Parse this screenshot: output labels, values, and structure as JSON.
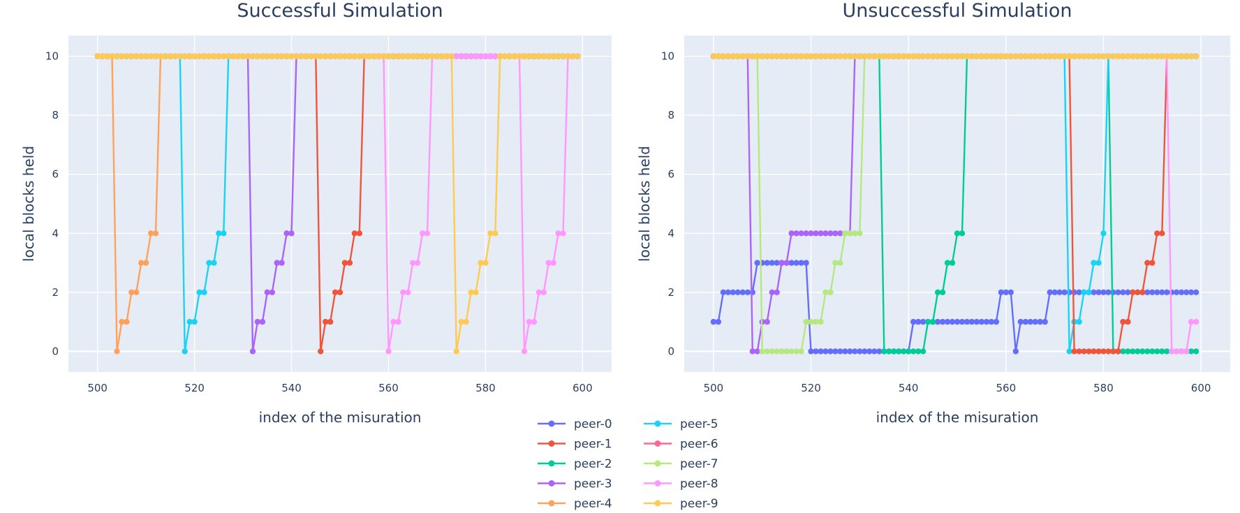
{
  "legend": {
    "placement": "bottom-center",
    "items": [
      {
        "name": "peer-0",
        "color": "#636efa"
      },
      {
        "name": "peer-1",
        "color": "#ef553b"
      },
      {
        "name": "peer-2",
        "color": "#00cc96"
      },
      {
        "name": "peer-3",
        "color": "#ab63fa"
      },
      {
        "name": "peer-4",
        "color": "#ffa15a"
      },
      {
        "name": "peer-5",
        "color": "#19d3f3"
      },
      {
        "name": "peer-6",
        "color": "#ff6692"
      },
      {
        "name": "peer-7",
        "color": "#b6e880"
      },
      {
        "name": "peer-8",
        "color": "#ff97ff"
      },
      {
        "name": "peer-9",
        "color": "#fecb52"
      }
    ]
  },
  "chart_data": [
    {
      "type": "line",
      "title": "Successful Simulation",
      "xlabel": "index of the misuration",
      "ylabel": "local blocks held",
      "xlim": [
        494,
        606
      ],
      "ylim": [
        -0.7,
        10.7
      ],
      "xticks": [
        500,
        520,
        540,
        560,
        580,
        600
      ],
      "yticks": [
        0,
        2,
        4,
        6,
        8,
        10
      ],
      "grid": true,
      "series": [
        {
          "name": "peer-4",
          "segments": [
            {
              "x0": 500,
              "x1": 503,
              "value": 10
            },
            {
              "x": [
                504,
                505,
                506,
                507,
                508,
                509,
                510,
                511,
                512,
                513
              ],
              "y": [
                0,
                1,
                1,
                2,
                2,
                3,
                3,
                4,
                4,
                10
              ]
            },
            {
              "x0": 513,
              "x1": 599,
              "value": 10
            }
          ]
        },
        {
          "name": "peer-5",
          "segments": [
            {
              "x0": 500,
              "x1": 517,
              "value": 10
            },
            {
              "x": [
                518,
                519,
                520,
                521,
                522,
                523,
                524,
                525,
                526,
                527
              ],
              "y": [
                0,
                1,
                1,
                2,
                2,
                3,
                3,
                4,
                4,
                10
              ]
            },
            {
              "x0": 527,
              "x1": 599,
              "value": 10
            }
          ]
        },
        {
          "name": "peer-3",
          "segments": [
            {
              "x0": 500,
              "x1": 531,
              "value": 10
            },
            {
              "x": [
                532,
                533,
                534,
                535,
                536,
                537,
                538,
                539,
                540,
                541
              ],
              "y": [
                0,
                1,
                1,
                2,
                2,
                3,
                3,
                4,
                4,
                10
              ]
            },
            {
              "x0": 541,
              "x1": 599,
              "value": 10
            }
          ]
        },
        {
          "name": "peer-1",
          "segments": [
            {
              "x0": 500,
              "x1": 545,
              "value": 10
            },
            {
              "x": [
                546,
                547,
                548,
                549,
                550,
                551,
                552,
                553,
                554,
                555
              ],
              "y": [
                0,
                1,
                1,
                2,
                2,
                3,
                3,
                4,
                4,
                10
              ]
            },
            {
              "x0": 555,
              "x1": 599,
              "value": 10
            }
          ]
        },
        {
          "name": "peer-8",
          "segments": [
            {
              "x0": 500,
              "x1": 559,
              "value": 10
            },
            {
              "x": [
                560,
                561,
                562,
                563,
                564,
                565,
                566,
                567,
                568,
                569
              ],
              "y": [
                0,
                1,
                1,
                2,
                2,
                3,
                3,
                4,
                4,
                10
              ]
            },
            {
              "x0": 569,
              "x1": 587,
              "value": 10
            },
            {
              "x": [
                588,
                589,
                590,
                591,
                592,
                593,
                594,
                595,
                596,
                597
              ],
              "y": [
                0,
                1,
                1,
                2,
                2,
                3,
                3,
                4,
                4,
                10
              ]
            },
            {
              "x0": 597,
              "x1": 599,
              "value": 10
            }
          ]
        },
        {
          "name": "peer-9",
          "segments": [
            {
              "x0": 500,
              "x1": 573,
              "value": 10
            },
            {
              "x": [
                574,
                575,
                576,
                577,
                578,
                579,
                580,
                581,
                582,
                583
              ],
              "y": [
                0,
                1,
                1,
                2,
                2,
                3,
                3,
                4,
                4,
                10
              ]
            },
            {
              "x0": 583,
              "x1": 599,
              "value": 10
            }
          ]
        }
      ]
    },
    {
      "type": "line",
      "title": "Unsuccessful Simulation",
      "xlabel": "index of the misuration",
      "ylabel": "local blocks held",
      "xlim": [
        494,
        606
      ],
      "ylim": [
        -0.7,
        10.7
      ],
      "xticks": [
        500,
        520,
        540,
        560,
        580,
        600
      ],
      "yticks": [
        0,
        2,
        4,
        6,
        8,
        10
      ],
      "grid": true,
      "series": [
        {
          "name": "peer-0",
          "segments": [
            {
              "x": [
                500,
                501
              ],
              "y": [
                1,
                1
              ]
            },
            {
              "x0": 502,
              "x1": 508,
              "value": 2
            },
            {
              "x0": 509,
              "x1": 519,
              "value": 3
            },
            {
              "x0": 520,
              "x1": 540,
              "value": 0
            },
            {
              "x0": 541,
              "x1": 558,
              "value": 1
            },
            {
              "x0": 559,
              "x1": 561,
              "value": 2
            },
            {
              "x": [
                562
              ],
              "y": [
                0
              ]
            },
            {
              "x0": 563,
              "x1": 568,
              "value": 1
            },
            {
              "x0": 569,
              "x1": 599,
              "value": 2
            }
          ]
        },
        {
          "name": "peer-3",
          "segments": [
            {
              "x0": 500,
              "x1": 507,
              "value": 10
            },
            {
              "x": [
                508,
                509,
                510,
                511,
                512,
                513,
                514,
                515,
                516,
                517
              ],
              "y": [
                0,
                0,
                1,
                1,
                2,
                2,
                3,
                3,
                4,
                4
              ]
            },
            {
              "x0": 518,
              "x1": 528,
              "value": 4
            },
            {
              "x": [
                529
              ],
              "y": [
                10
              ]
            },
            {
              "x0": 529,
              "x1": 599,
              "value": 10
            }
          ]
        },
        {
          "name": "peer-7",
          "segments": [
            {
              "x0": 500,
              "x1": 509,
              "value": 10
            },
            {
              "x0": 510,
              "x1": 518,
              "value": 0
            },
            {
              "x": [
                519,
                520,
                521,
                522,
                523,
                524,
                525,
                526,
                527,
                528,
                529,
                530,
                531
              ],
              "y": [
                1,
                1,
                1,
                1,
                2,
                2,
                3,
                3,
                4,
                4,
                4,
                4,
                10
              ]
            },
            {
              "x0": 531,
              "x1": 599,
              "value": 10
            }
          ]
        },
        {
          "name": "peer-2",
          "segments": [
            {
              "x0": 500,
              "x1": 534,
              "value": 10
            },
            {
              "x0": 535,
              "x1": 543,
              "value": 0
            },
            {
              "x": [
                544,
                545,
                546,
                547,
                548,
                549,
                550,
                551,
                552
              ],
              "y": [
                1,
                1,
                2,
                2,
                3,
                3,
                4,
                4,
                10
              ]
            },
            {
              "x0": 552,
              "x1": 581,
              "value": 10
            },
            {
              "x0": 582,
              "x1": 599,
              "value": 0
            }
          ]
        },
        {
          "name": "peer-5",
          "segments": [
            {
              "x0": 500,
              "x1": 572,
              "value": 10
            },
            {
              "x": [
                573,
                574,
                575,
                576,
                577,
                578,
                579,
                580,
                581
              ],
              "y": [
                0,
                1,
                1,
                2,
                2,
                3,
                3,
                4,
                10
              ]
            },
            {
              "x0": 581,
              "x1": 599,
              "value": 10
            }
          ]
        },
        {
          "name": "peer-1",
          "segments": [
            {
              "x0": 500,
              "x1": 573,
              "value": 10
            },
            {
              "x0": 574,
              "x1": 583,
              "value": 0
            },
            {
              "x": [
                584,
                585,
                586,
                587,
                588,
                589,
                590,
                591,
                592,
                593,
                594
              ],
              "y": [
                1,
                1,
                2,
                2,
                2,
                3,
                3,
                4,
                4,
                10,
                10
              ]
            },
            {
              "x0": 594,
              "x1": 599,
              "value": 10
            }
          ]
        },
        {
          "name": "peer-8",
          "segments": [
            {
              "x0": 500,
              "x1": 593,
              "value": 10
            },
            {
              "x0": 594,
              "x1": 597,
              "value": 0
            },
            {
              "x": [
                598,
                599
              ],
              "y": [
                1,
                1
              ]
            }
          ]
        },
        {
          "name": "peer-9",
          "segments": [
            {
              "x0": 500,
              "x1": 599,
              "value": 10
            }
          ]
        }
      ]
    }
  ]
}
